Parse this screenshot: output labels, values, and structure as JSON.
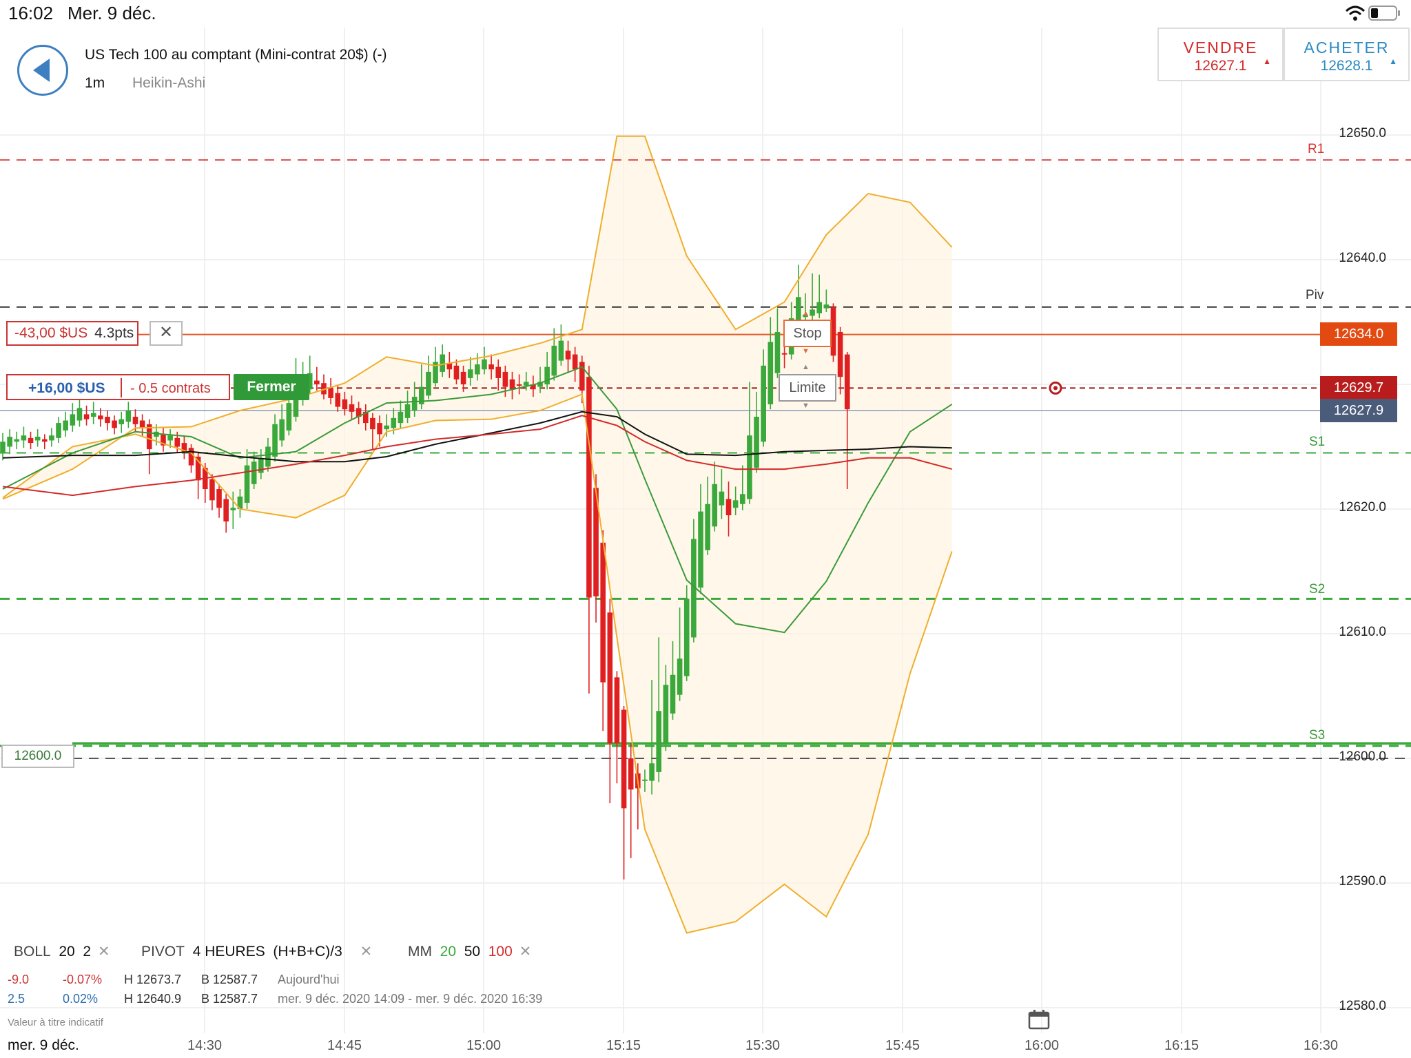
{
  "status_bar": {
    "time": "16:02",
    "date": "Mer. 9 déc."
  },
  "header": {
    "instrument": "US Tech 100 au comptant (Mini-contrat 20$) (-)",
    "interval": "1m",
    "chart_type": "Heikin-Ashi"
  },
  "trade": {
    "sell_label": "VENDRE",
    "sell_price": "12627.1",
    "buy_label": "ACHETER",
    "buy_price": "12628.1"
  },
  "orders": {
    "stop_pl": "-43,00 $US",
    "stop_pts": "4.3pts",
    "stop_label": "Stop",
    "position_pl": "+16,00 $US",
    "position_size": "- 0.5 contrats",
    "close_label": "Fermer",
    "limit_label": "Limite",
    "alert_level": "12600.0"
  },
  "tags": {
    "stop": "12634.0",
    "limit": "12629.7",
    "last": "12627.9"
  },
  "indicators": {
    "boll_label": "BOLL",
    "boll_period": "20",
    "boll_dev": "2",
    "pivot_label": "PIVOT",
    "pivot_tf": "4 HEURES",
    "pivot_formula": "(H+B+C)/3",
    "ma_label": "MM",
    "ma_fast": "20",
    "ma_mid": "50",
    "ma_slow": "100"
  },
  "stats": {
    "row1_change": "-9.0",
    "row1_pct": "-0.07%",
    "row1_high": "H 12673.7",
    "row1_low": "B 12587.7",
    "row1_period": "Aujourd'hui",
    "row2_change": "2.5",
    "row2_pct": "0.02%",
    "row2_high": "H 12640.9",
    "row2_low": "B 12587.7",
    "row2_period": "mer. 9 déc. 2020 14:09 - mer. 9 déc. 2020 16:39"
  },
  "disclaimer": "Valeur à titre indicatif",
  "date_label": "mer. 9 déc.",
  "colors": {
    "up": "#3aa83a",
    "down": "#e02020",
    "accent": "#3d7fc1",
    "boll": "#f0ae2c"
  },
  "chart_data": {
    "type": "candlestick",
    "y_ticks": [
      "12650.0",
      "12640.0",
      "12620.0",
      "12610.0",
      "12600.0",
      "12590.0",
      "12580.0"
    ],
    "x_ticks": [
      "14:30",
      "14:45",
      "15:00",
      "15:15",
      "15:30",
      "15:45",
      "16:00",
      "16:15",
      "16:30"
    ],
    "ylim": [
      12580,
      12650
    ],
    "pivots": [
      {
        "name": "R1",
        "value": 12648
      },
      {
        "name": "Piv",
        "value": 12636.2
      },
      {
        "name": "S1",
        "value": 12624.5
      },
      {
        "name": "S2",
        "value": 12612.8
      },
      {
        "name": "S3",
        "value": 12601
      }
    ],
    "candles": [
      [
        12624.5,
        12625.4,
        12623.9,
        12626.1
      ],
      [
        12625.0,
        12625.8,
        12624.4,
        12626.4
      ],
      [
        12625.4,
        12625.6,
        12624.8,
        12626.2
      ],
      [
        12625.5,
        12625.9,
        12624.9,
        12626.6
      ],
      [
        12625.7,
        12625.3,
        12624.8,
        12626.2
      ],
      [
        12625.5,
        12625.8,
        12625.0,
        12626.4
      ],
      [
        12625.6,
        12625.4,
        12624.8,
        12626.0
      ],
      [
        12625.5,
        12625.9,
        12625.0,
        12626.5
      ],
      [
        12625.7,
        12626.9,
        12625.3,
        12627.4
      ],
      [
        12626.3,
        12627.1,
        12625.8,
        12627.8
      ],
      [
        12626.7,
        12627.6,
        12626.2,
        12628.5
      ],
      [
        12627.1,
        12628.1,
        12626.6,
        12629.0
      ],
      [
        12627.6,
        12627.2,
        12626.7,
        12628.3
      ],
      [
        12627.4,
        12627.7,
        12626.8,
        12628.6
      ],
      [
        12627.5,
        12627.2,
        12626.6,
        12628.1
      ],
      [
        12627.4,
        12626.9,
        12626.3,
        12627.9
      ],
      [
        12627.1,
        12626.5,
        12626.0,
        12627.5
      ],
      [
        12626.8,
        12627.2,
        12626.1,
        12627.8
      ],
      [
        12627.0,
        12627.9,
        12626.5,
        12628.6
      ],
      [
        12627.4,
        12626.8,
        12626.2,
        12628.0
      ],
      [
        12627.1,
        12626.5,
        12625.8,
        12627.6
      ],
      [
        12626.8,
        12624.8,
        12622.8,
        12627.2
      ],
      [
        12625.8,
        12626.2,
        12625.1,
        12626.8
      ],
      [
        12626.0,
        12625.1,
        12624.6,
        12626.5
      ],
      [
        12625.5,
        12625.9,
        12624.9,
        12626.4
      ],
      [
        12625.7,
        12625.0,
        12624.5,
        12626.2
      ],
      [
        12625.3,
        12624.6,
        12624.0,
        12625.8
      ],
      [
        12624.9,
        12623.5,
        12622.9,
        12625.2
      ],
      [
        12624.2,
        12622.3,
        12620.8,
        12624.6
      ],
      [
        12623.3,
        12621.6,
        12620.5,
        12623.7
      ],
      [
        12622.4,
        12620.7,
        12619.9,
        12622.8
      ],
      [
        12621.6,
        12620.1,
        12619.3,
        12622.0
      ],
      [
        12620.8,
        12619.0,
        12618.1,
        12621.2
      ],
      [
        12619.9,
        12620.1,
        12618.4,
        12621.4
      ],
      [
        12620.0,
        12621.0,
        12619.3,
        12621.6
      ],
      [
        12620.5,
        12623.5,
        12620.0,
        12624.8
      ],
      [
        12622.0,
        12623.8,
        12621.6,
        12624.6
      ],
      [
        12622.9,
        12624.0,
        12622.4,
        12624.8
      ],
      [
        12623.4,
        12625.0,
        12623.0,
        12625.7
      ],
      [
        12624.2,
        12626.8,
        12623.8,
        12627.6
      ],
      [
        12625.5,
        12627.2,
        12625.0,
        12628.4
      ],
      [
        12626.3,
        12628.5,
        12625.9,
        12629.6
      ],
      [
        12627.4,
        12630.2,
        12627.0,
        12632.1
      ],
      [
        12628.8,
        12630.5,
        12628.3,
        12631.8
      ],
      [
        12629.6,
        12630.9,
        12629.2,
        12632.3
      ],
      [
        12630.3,
        12630.0,
        12629.5,
        12631.4
      ],
      [
        12630.1,
        12629.2,
        12628.8,
        12630.8
      ],
      [
        12629.7,
        12628.9,
        12628.4,
        12630.5
      ],
      [
        12629.3,
        12628.2,
        12627.8,
        12629.9
      ],
      [
        12628.8,
        12628.0,
        12627.5,
        12629.4
      ],
      [
        12628.4,
        12627.8,
        12627.2,
        12629.1
      ],
      [
        12628.1,
        12627.4,
        12626.8,
        12628.6
      ],
      [
        12627.8,
        12626.9,
        12626.3,
        12628.4
      ],
      [
        12627.3,
        12626.4,
        12624.8,
        12627.7
      ],
      [
        12626.9,
        12626.0,
        12625.0,
        12627.5
      ],
      [
        12626.4,
        12626.7,
        12625.8,
        12627.6
      ],
      [
        12626.5,
        12627.3,
        12626.0,
        12628.1
      ],
      [
        12626.9,
        12627.8,
        12626.5,
        12628.7
      ],
      [
        12627.3,
        12628.4,
        12626.9,
        12629.5
      ],
      [
        12627.9,
        12629.0,
        12627.4,
        12630.2
      ],
      [
        12628.4,
        12629.8,
        12628.0,
        12631.6
      ],
      [
        12629.1,
        12631.0,
        12628.8,
        12632.3
      ],
      [
        12630.1,
        12631.8,
        12629.8,
        12633.0
      ],
      [
        12631.0,
        12632.4,
        12630.6,
        12633.2
      ],
      [
        12631.7,
        12631.2,
        12630.5,
        12632.6
      ],
      [
        12631.5,
        12630.4,
        12630.0,
        12632.0
      ],
      [
        12631.0,
        12630.0,
        12629.4,
        12631.5
      ],
      [
        12630.5,
        12631.2,
        12629.9,
        12632.2
      ],
      [
        12630.8,
        12631.6,
        12630.3,
        12632.5
      ],
      [
        12631.2,
        12632.0,
        12630.8,
        12633.0
      ],
      [
        12631.6,
        12631.2,
        12630.4,
        12632.4
      ],
      [
        12631.4,
        12630.5,
        12629.5,
        12632.0
      ],
      [
        12631.0,
        12629.8,
        12629.0,
        12631.5
      ],
      [
        12630.4,
        12629.6,
        12628.8,
        12631.0
      ],
      [
        12630.0,
        12629.9,
        12629.2,
        12630.8
      ],
      [
        12629.9,
        12630.2,
        12629.5,
        12631.0
      ],
      [
        12630.0,
        12629.6,
        12629.0,
        12630.7
      ],
      [
        12629.8,
        12630.2,
        12629.3,
        12631.4
      ],
      [
        12630.0,
        12631.4,
        12629.6,
        12632.6
      ],
      [
        12630.7,
        12633.1,
        12630.3,
        12634.5
      ],
      [
        12631.9,
        12633.5,
        12631.5,
        12634.8
      ],
      [
        12632.7,
        12632.0,
        12631.0,
        12633.5
      ],
      [
        12632.4,
        12631.2,
        12630.2,
        12633.0
      ],
      [
        12631.8,
        12629.5,
        12628.5,
        12632.3
      ],
      [
        12630.6,
        12612.9,
        12605.2,
        12631.5
      ],
      [
        12621.7,
        12613.0,
        12610.9,
        12622.8
      ],
      [
        12617.3,
        12606.1,
        12602.2,
        12618.3
      ],
      [
        12611.7,
        12601.2,
        12596.4,
        12612.8
      ],
      [
        12606.5,
        12601.2,
        12598.0,
        12607.0
      ],
      [
        12603.9,
        12596.0,
        12590.3,
        12604.2
      ],
      [
        12600.0,
        12597.5,
        12592.0,
        12601.2
      ],
      [
        12598.8,
        12597.6,
        12594.3,
        12599.6
      ],
      [
        12598.2,
        12598.3,
        12597.3,
        12599.1
      ],
      [
        12598.2,
        12599.6,
        12597.1,
        12606.3
      ],
      [
        12598.9,
        12603.8,
        12598.1,
        12609.7
      ],
      [
        12601.3,
        12605.9,
        12600.6,
        12607.5
      ],
      [
        12603.6,
        12606.7,
        12603.1,
        12609.4
      ],
      [
        12605.1,
        12608.0,
        12604.6,
        12612.1
      ],
      [
        12606.6,
        12612.8,
        12606.2,
        12613.9
      ],
      [
        12609.7,
        12617.6,
        12609.3,
        12619.2
      ],
      [
        12613.7,
        12619.8,
        12613.2,
        12622.0
      ],
      [
        12616.7,
        12620.4,
        12616.3,
        12622.6
      ],
      [
        12618.6,
        12622.0,
        12618.2,
        12623.8
      ],
      [
        12620.3,
        12621.4,
        12619.2,
        12623.2
      ],
      [
        12620.8,
        12619.5,
        12617.8,
        12622.2
      ],
      [
        12620.1,
        12620.7,
        12619.5,
        12621.8
      ],
      [
        12620.4,
        12621.2,
        12619.9,
        12623.5
      ],
      [
        12620.8,
        12625.9,
        12620.4,
        12630.2
      ],
      [
        12623.3,
        12627.4,
        12622.9,
        12629.4
      ],
      [
        12625.4,
        12631.5,
        12625.0,
        12632.8
      ],
      [
        12628.4,
        12633.4,
        12628.0,
        12635.4
      ],
      [
        12630.9,
        12634.2,
        12630.5,
        12636.1
      ],
      [
        12632.5,
        12632.4,
        12631.3,
        12633.8
      ],
      [
        12632.4,
        12635.3,
        12632.0,
        12636.6
      ],
      [
        12633.8,
        12637.0,
        12633.4,
        12639.6
      ],
      [
        12635.4,
        12635.6,
        12634.6,
        12637.3
      ],
      [
        12635.5,
        12636.0,
        12635.0,
        12638.9
      ],
      [
        12635.7,
        12636.6,
        12635.3,
        12638.8
      ],
      [
        12636.1,
        12636.4,
        12635.8,
        12637.6
      ],
      [
        12636.2,
        12632.3,
        12631.8,
        12636.5
      ],
      [
        12634.2,
        12630.6,
        12629.2,
        12634.6
      ],
      [
        12632.4,
        12628.0,
        12621.6,
        12632.6
      ]
    ],
    "bollinger_upper": [
      [
        0,
        12620.8
      ],
      [
        10,
        12623.2
      ],
      [
        19,
        12626.5
      ],
      [
        27,
        12626.6
      ],
      [
        34,
        12627.9
      ],
      [
        42,
        12628.9
      ],
      [
        49,
        12630.1
      ],
      [
        55,
        12632.2
      ],
      [
        62,
        12631.5
      ],
      [
        70,
        12632.3
      ],
      [
        77,
        12633.3
      ],
      [
        83,
        12634.4
      ],
      [
        88,
        12649.9
      ],
      [
        92,
        12649.9
      ],
      [
        98,
        12640.3
      ],
      [
        105,
        12634.4
      ],
      [
        112,
        12636.6
      ],
      [
        118,
        12642.0
      ],
      [
        124,
        12645.3
      ],
      [
        130,
        12644.6
      ],
      [
        136,
        12641.0
      ]
    ],
    "bollinger_lower": [
      [
        0,
        12620.9
      ],
      [
        10,
        12625.0
      ],
      [
        19,
        12626.0
      ],
      [
        27,
        12624.5
      ],
      [
        34,
        12620.0
      ],
      [
        42,
        12619.3
      ],
      [
        49,
        12621.1
      ],
      [
        55,
        12626.2
      ],
      [
        62,
        12627.1
      ],
      [
        70,
        12627.2
      ],
      [
        77,
        12627.9
      ],
      [
        83,
        12629.2
      ],
      [
        88,
        12609.7
      ],
      [
        92,
        12594.3
      ],
      [
        98,
        12586.0
      ],
      [
        105,
        12586.9
      ],
      [
        112,
        12589.9
      ],
      [
        118,
        12587.3
      ],
      [
        124,
        12593.9
      ],
      [
        130,
        12606.8
      ],
      [
        136,
        12616.6
      ]
    ],
    "ma20": [
      [
        0,
        12621.6
      ],
      [
        10,
        12624.5
      ],
      [
        19,
        12626.2
      ],
      [
        27,
        12625.8
      ],
      [
        34,
        12624.1
      ],
      [
        42,
        12624.6
      ],
      [
        49,
        12626.9
      ],
      [
        55,
        12628.5
      ],
      [
        62,
        12628.7
      ],
      [
        70,
        12629.2
      ],
      [
        77,
        12630.1
      ],
      [
        83,
        12631.4
      ],
      [
        88,
        12628.0
      ],
      [
        92,
        12622.4
      ],
      [
        98,
        12614.3
      ],
      [
        105,
        12610.8
      ],
      [
        112,
        12610.1
      ],
      [
        118,
        12614.2
      ],
      [
        124,
        12620.5
      ],
      [
        130,
        12626.2
      ],
      [
        136,
        12628.4
      ]
    ],
    "ma50": [
      [
        0,
        12624.1
      ],
      [
        10,
        12624.3
      ],
      [
        19,
        12624.3
      ],
      [
        27,
        12624.6
      ],
      [
        34,
        12624.2
      ],
      [
        42,
        12623.8
      ],
      [
        49,
        12623.8
      ],
      [
        55,
        12624.2
      ],
      [
        62,
        12625.2
      ],
      [
        70,
        12626.1
      ],
      [
        77,
        12626.9
      ],
      [
        83,
        12627.8
      ],
      [
        88,
        12627.4
      ],
      [
        92,
        12626.0
      ],
      [
        98,
        12624.4
      ],
      [
        105,
        12624.3
      ],
      [
        112,
        12624.6
      ],
      [
        118,
        12624.7
      ],
      [
        124,
        12624.8
      ],
      [
        130,
        12625.0
      ],
      [
        136,
        12624.9
      ]
    ],
    "ma100": [
      [
        0,
        12621.8
      ],
      [
        10,
        12621.1
      ],
      [
        19,
        12621.8
      ],
      [
        27,
        12622.3
      ],
      [
        34,
        12622.9
      ],
      [
        42,
        12623.6
      ],
      [
        49,
        12624.3
      ],
      [
        55,
        12625.0
      ],
      [
        62,
        12625.6
      ],
      [
        70,
        12626.0
      ],
      [
        77,
        12626.4
      ],
      [
        83,
        12627.5
      ],
      [
        88,
        12626.7
      ],
      [
        92,
        12625.4
      ],
      [
        98,
        12623.9
      ],
      [
        105,
        12623.2
      ],
      [
        112,
        12623.2
      ],
      [
        118,
        12623.6
      ],
      [
        124,
        12624.1
      ],
      [
        130,
        12624.1
      ],
      [
        136,
        12623.2
      ]
    ]
  }
}
